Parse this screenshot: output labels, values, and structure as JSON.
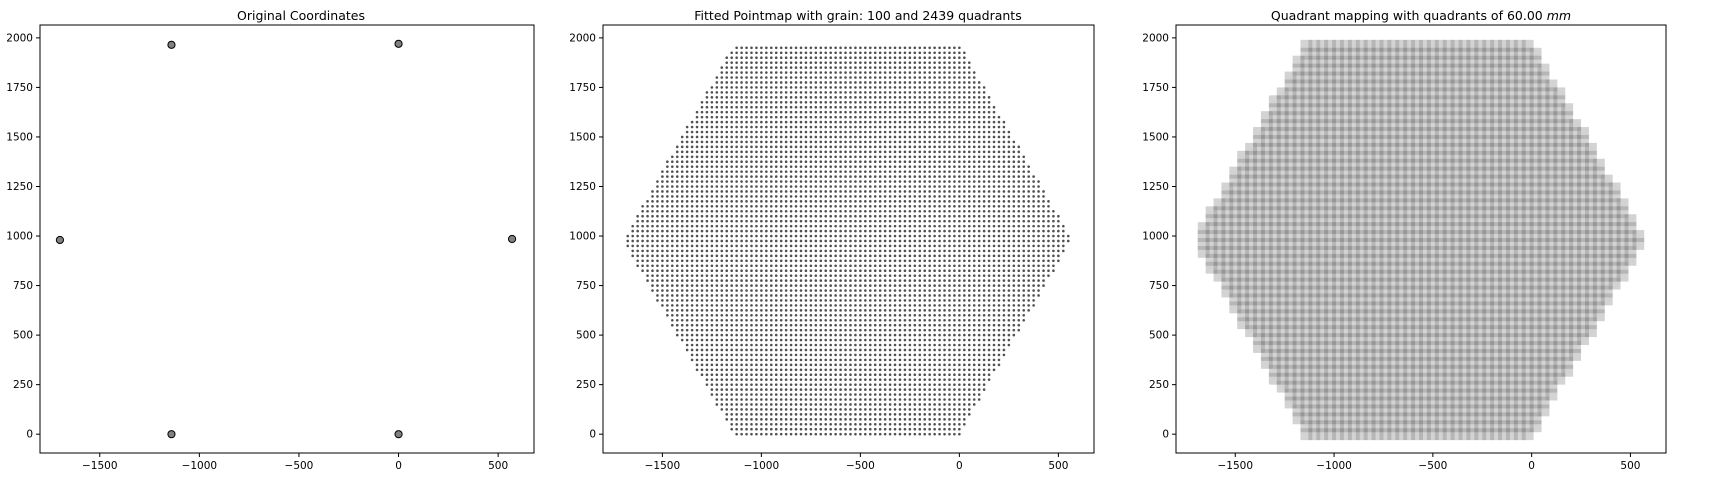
{
  "chart_data": [
    {
      "type": "scatter",
      "title": "Original Coordinates",
      "xlabel": "",
      "ylabel": "",
      "xlim": [
        -1800,
        680
      ],
      "ylim": [
        -95,
        2065
      ],
      "xticks": [
        -1500,
        -1000,
        -500,
        0,
        500
      ],
      "xtick_labels": [
        "−1500",
        "−1000",
        "−500",
        "0",
        "500"
      ],
      "yticks": [
        0,
        250,
        500,
        750,
        1000,
        1250,
        1500,
        1750,
        2000
      ],
      "ytick_labels": [
        "0",
        "250",
        "500",
        "750",
        "1000",
        "1250",
        "1500",
        "1750",
        "2000"
      ],
      "points": [
        {
          "x": -1700,
          "y": 980
        },
        {
          "x": -1140,
          "y": 1965
        },
        {
          "x": 0,
          "y": 1970
        },
        {
          "x": 570,
          "y": 985
        },
        {
          "x": -1140,
          "y": 0
        },
        {
          "x": 0,
          "y": 0
        }
      ],
      "marker_color": "#808080",
      "edge_color": "#000000",
      "grid": false
    },
    {
      "type": "scatter",
      "title": "Fitted Pointmap with grain: 100 and 2439 quadrants",
      "xlabel": "",
      "ylabel": "",
      "xlim": [
        -1800,
        680
      ],
      "ylim": [
        -95,
        2065
      ],
      "xticks": [
        -1500,
        -1000,
        -500,
        0,
        500
      ],
      "xtick_labels": [
        "−1500",
        "−1000",
        "−500",
        "0",
        "500"
      ],
      "yticks": [
        0,
        250,
        500,
        750,
        1000,
        1250,
        1500,
        1750,
        2000
      ],
      "ytick_labels": [
        "0",
        "250",
        "500",
        "750",
        "1000",
        "1250",
        "1500",
        "1750",
        "2000"
      ],
      "hexagon_vertices": [
        {
          "x": -1700,
          "y": 980
        },
        {
          "x": -1140,
          "y": 1965
        },
        {
          "x": 0,
          "y": 1970
        },
        {
          "x": 570,
          "y": 985
        },
        {
          "x": 0,
          "y": 0
        },
        {
          "x": -1140,
          "y": 0
        }
      ],
      "grid_step": 25,
      "marker_color": "#505050",
      "grid": false
    },
    {
      "type": "heatmap",
      "title_prefix": "Quadrant mapping with quadrants of 60.00 ",
      "title_unit": "mm",
      "xlabel": "",
      "ylabel": "",
      "xlim": [
        -1800,
        680
      ],
      "ylim": [
        -95,
        2065
      ],
      "xticks": [
        -1500,
        -1000,
        -500,
        0,
        500
      ],
      "xtick_labels": [
        "−1500",
        "−1000",
        "−500",
        "0",
        "500"
      ],
      "yticks": [
        0,
        250,
        500,
        750,
        1000,
        1250,
        1500,
        1750,
        2000
      ],
      "ytick_labels": [
        "0",
        "250",
        "500",
        "750",
        "1000",
        "1250",
        "1500",
        "1750",
        "2000"
      ],
      "hexagon_vertices": [
        {
          "x": -1700,
          "y": 980
        },
        {
          "x": -1140,
          "y": 1965
        },
        {
          "x": 0,
          "y": 1970
        },
        {
          "x": 570,
          "y": 985
        },
        {
          "x": 0,
          "y": 0
        },
        {
          "x": -1140,
          "y": 0
        }
      ],
      "quadrant_size": 60,
      "grid_step": 40,
      "fill_color": "#808080",
      "fill_opacity": 0.35,
      "grid": false
    }
  ]
}
